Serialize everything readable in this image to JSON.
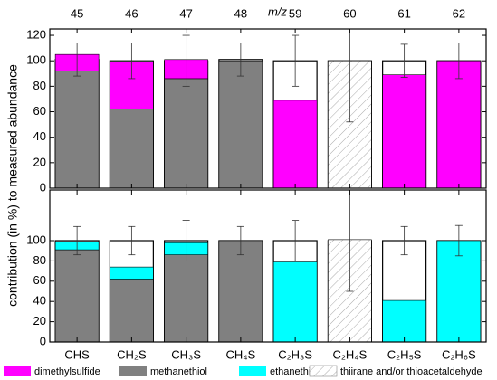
{
  "chart_data": {
    "type": "bar",
    "stacked": true,
    "ylabel": "contribution (in %) to measured abundance",
    "top_xlabel": "m/z",
    "top_categories": [
      "45",
      "46",
      "47",
      "48",
      "59",
      "60",
      "61",
      "62"
    ],
    "categories": [
      "CHS",
      "CH₂S",
      "CH₃S",
      "CH₄S",
      "C₂H₃S",
      "C₂H₄S",
      "C₂H₅S",
      "C₂H₆S"
    ],
    "series": [
      {
        "name": "dimethylsulfide",
        "color": "#ff00ff"
      },
      {
        "name": "methanethiol",
        "color": "#808080"
      },
      {
        "name": "ethanethiol",
        "color": "#00ffff"
      },
      {
        "name": "thiirane and/or thioacetaldehyde",
        "color": "#ffffff",
        "hatch": true
      }
    ],
    "panels": [
      {
        "ylim": [
          0,
          125
        ],
        "yticks": [
          0,
          20,
          40,
          60,
          80,
          100,
          120
        ],
        "values": [
          [
            13,
            37,
            15,
            null,
            69,
            null,
            89,
            100
          ],
          [
            92,
            62,
            86,
            100,
            null,
            null,
            null,
            null
          ],
          [
            null,
            null,
            null,
            null,
            null,
            null,
            null,
            null
          ],
          [
            null,
            null,
            null,
            null,
            null,
            100,
            null,
            null
          ]
        ],
        "measured": {
          "values": [
            101,
            100,
            100,
            101,
            100,
            100,
            100,
            100
          ],
          "errors": [
            13,
            14,
            20,
            13,
            20,
            48,
            13,
            14
          ]
        }
      },
      {
        "ylim": [
          0,
          150
        ],
        "yticks": [
          0,
          20,
          40,
          60,
          80,
          100
        ],
        "values": [
          [
            null,
            null,
            null,
            null,
            null,
            null,
            null,
            null
          ],
          [
            91,
            62,
            86,
            100,
            null,
            null,
            null,
            null
          ],
          [
            8,
            12,
            12,
            null,
            79,
            null,
            41,
            100
          ],
          [
            null,
            null,
            null,
            null,
            null,
            101,
            null,
            null
          ]
        ],
        "measured": {
          "values": [
            100,
            100,
            100,
            100,
            100,
            100,
            100,
            100
          ],
          "errors": [
            14,
            14,
            20,
            14,
            20,
            50,
            14,
            15
          ]
        }
      }
    ]
  }
}
